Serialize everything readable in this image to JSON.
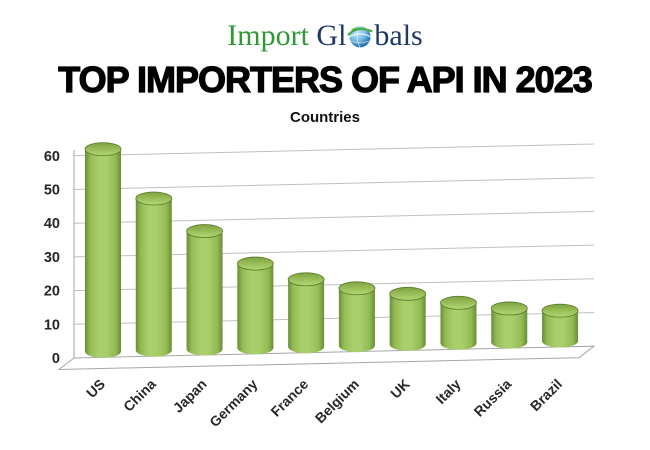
{
  "logo": {
    "word1": "Import",
    "word2_prefix": "Gl",
    "word2_suffix": "bals",
    "brand_green": "#2f9a35",
    "brand_navy": "#1f3864",
    "globe_blue_light": "#7ec3e8",
    "globe_blue_dark": "#0e5ea8",
    "globe_green": "#49a53c"
  },
  "title": "TOP IMPORTERS OF API IN 2023",
  "chart_data": {
    "type": "bar",
    "style": "3d-cylinder",
    "title": "Countries",
    "categories": [
      "US",
      "China",
      "Japan",
      "Germany",
      "France",
      "Belgium",
      "UK",
      "Italy",
      "Russia",
      "Brazil"
    ],
    "values": [
      60,
      45,
      35,
      25,
      20,
      17,
      15,
      12,
      10,
      9
    ],
    "xlabel": "",
    "ylabel": "",
    "ylim": [
      0,
      60
    ],
    "yticks": [
      0,
      10,
      20,
      30,
      40,
      50,
      60
    ],
    "grid": true,
    "legend": false,
    "colors": {
      "bar_light": "#a9cf6d",
      "bar_mid": "#93bb52",
      "bar_dark": "#6a8c38",
      "bar_edge": "#5d7e2e",
      "cap_light": "#b2d873",
      "cap_dark": "#7ea33f",
      "gridline": "#c0c0c0",
      "axis": "#a6a6a6",
      "tick_label": "#262626"
    }
  }
}
